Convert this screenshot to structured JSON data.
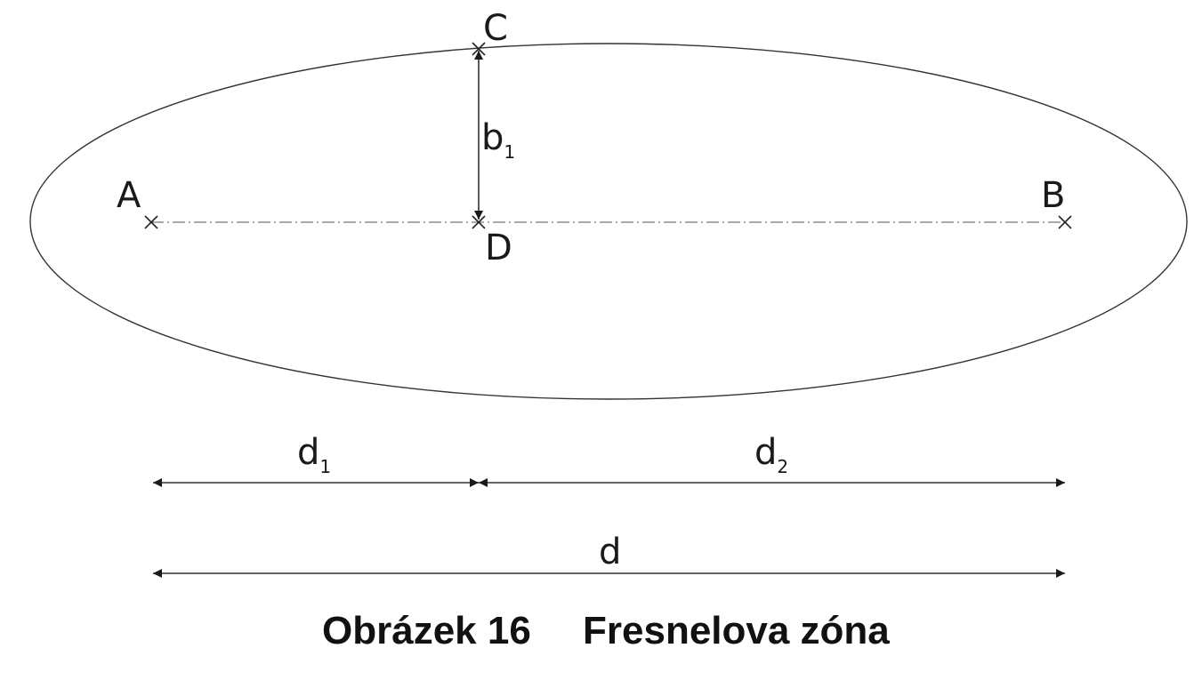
{
  "points": {
    "A": "A",
    "B": "B",
    "C": "C",
    "D": "D"
  },
  "dimensions": {
    "b1": {
      "base": "b",
      "sub": "1"
    },
    "d1": {
      "base": "d",
      "sub": "1"
    },
    "d2": {
      "base": "d",
      "sub": "2"
    },
    "d": "d"
  },
  "caption": {
    "number": "Obrázek 16",
    "title": "Fresnelova zóna"
  },
  "colors": {
    "line": "#333333",
    "arrow": "#1a1a1a",
    "text": "#1a1a1a"
  }
}
